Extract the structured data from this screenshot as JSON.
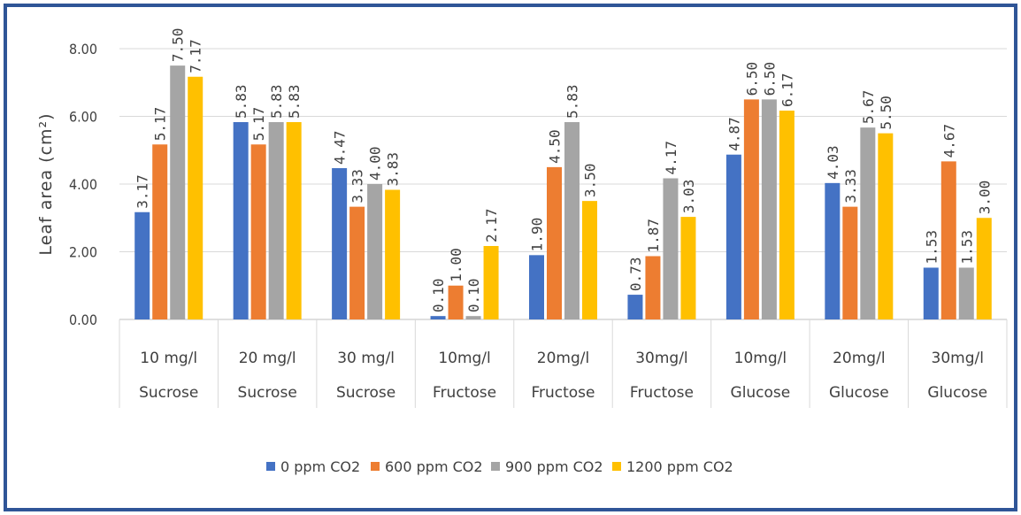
{
  "chart_data": {
    "type": "bar",
    "title": "",
    "xlabel": "",
    "ylabel": "Leaf area (cm²)",
    "ylim": [
      0,
      8
    ],
    "yticks": [
      "0.00",
      "2.00",
      "4.00",
      "6.00",
      "8.00"
    ],
    "grid": true,
    "legend_position": "bottom",
    "categories": [
      [
        "10 mg/l",
        "Sucrose"
      ],
      [
        "20 mg/l",
        "Sucrose"
      ],
      [
        "30 mg/l",
        "Sucrose"
      ],
      [
        "10mg/l",
        "Fructose"
      ],
      [
        "20mg/l",
        "Fructose"
      ],
      [
        "30mg/l",
        "Fructose"
      ],
      [
        "10mg/l",
        "Glucose"
      ],
      [
        "20mg/l",
        "Glucose"
      ],
      [
        "30mg/l",
        "Glucose"
      ]
    ],
    "series": [
      {
        "name": "0 ppm CO2",
        "color": "#4472c4",
        "values": [
          3.17,
          5.83,
          4.47,
          0.1,
          1.9,
          0.73,
          4.87,
          4.03,
          1.53
        ]
      },
      {
        "name": "600 ppm CO2",
        "color": "#ed7d31",
        "values": [
          5.17,
          5.17,
          3.33,
          1.0,
          4.5,
          1.87,
          6.5,
          3.33,
          4.67
        ]
      },
      {
        "name": "900 ppm CO2",
        "color": "#a5a5a5",
        "values": [
          7.5,
          5.83,
          4.0,
          0.1,
          5.83,
          4.17,
          6.5,
          5.67,
          1.53
        ]
      },
      {
        "name": "1200 ppm CO2",
        "color": "#ffc000",
        "values": [
          7.17,
          5.83,
          3.83,
          2.17,
          3.5,
          3.03,
          6.17,
          5.5,
          3.0
        ]
      }
    ],
    "data_labels": [
      [
        "3.17",
        "5.17",
        "7.50",
        "7.17"
      ],
      [
        "5.83",
        "5.17",
        "5.83",
        "5.83"
      ],
      [
        "4.47",
        "3.33",
        "4.00",
        "3.83"
      ],
      [
        "0.10",
        "1.00",
        "0.10",
        "2.17"
      ],
      [
        "1.90",
        "4.50",
        "5.83",
        "3.50"
      ],
      [
        "0.73",
        "1.87",
        "4.17",
        "3.03"
      ],
      [
        "4.87",
        "6.50",
        "6.50",
        "6.17"
      ],
      [
        "4.03",
        "3.33",
        "5.67",
        "5.50"
      ],
      [
        "1.53",
        "4.67",
        "1.53",
        "3.00"
      ]
    ]
  }
}
